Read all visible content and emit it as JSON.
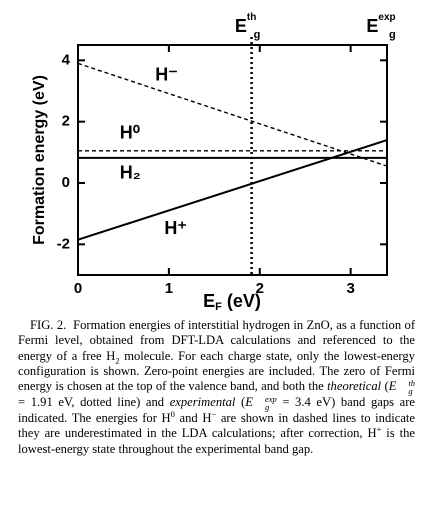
{
  "chart_data": {
    "type": "line",
    "ylabel": "Formation energy (eV)",
    "xlabel": {
      "main": "E",
      "sub": "F",
      "unit": "(eV)"
    },
    "xlim": [
      0,
      3.4
    ],
    "xticks": [
      0,
      1,
      2,
      3
    ],
    "ylim": [
      -3,
      4.5
    ],
    "yticks": [
      -2,
      0,
      2,
      4
    ],
    "series": [
      {
        "name": "H⁻",
        "x": [
          0,
          3.4
        ],
        "values": [
          3.9,
          0.55
        ],
        "color": "#000",
        "dash": "dashed"
      },
      {
        "name": "H⁰",
        "x": [
          0,
          3.4
        ],
        "values": [
          1.05,
          1.05
        ],
        "color": "#000",
        "dash": "dashed"
      },
      {
        "name": "H₂",
        "x": [
          0,
          3.4
        ],
        "values": [
          0.82,
          0.82
        ],
        "color": "#000",
        "dash": "solid"
      },
      {
        "name": "H⁺",
        "x": [
          0,
          3.4
        ],
        "values": [
          -1.85,
          1.4
        ],
        "color": "#000",
        "dash": "solid"
      }
    ],
    "annotations": [
      {
        "x": 1.91,
        "main": "E",
        "sub": "g",
        "sup": "th",
        "line": "dotted"
      },
      {
        "x": 3.4,
        "main": "E",
        "sub": "g",
        "sup": "exp"
      }
    ]
  },
  "caption": {
    "parts": [
      "FIG. 2.",
      "Formation energies of interstitial hydrogen in ZnO, as a function of Fermi level, obtained from DFT-LDA calculations and referenced to the energy of a free H",
      "2",
      "molecule. For each charge state, only the lowest-energy configuration is shown. Zero-point energies are included. The zero of Fermi energy is chosen at the top of the valence band, and both the",
      "theoretical",
      "(",
      "E",
      "th",
      "g",
      "= 1.91 eV, dotted line) and",
      "experimental",
      "(",
      "E",
      "exp",
      "g",
      "= 3.4 eV) band gaps are indicated. The energies for H",
      "0",
      "and H",
      "−",
      "are shown in dashed lines to indicate they are underestimated in the LDA calculations; after correction, H",
      "+",
      "is the lowest-energy state throughout the experimental band gap."
    ]
  }
}
